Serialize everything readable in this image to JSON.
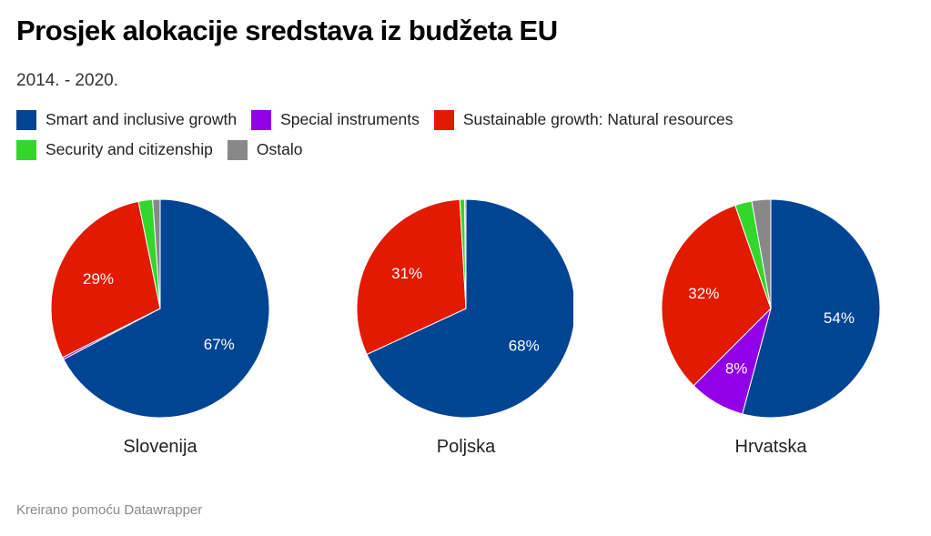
{
  "header": {
    "title": "Prosjek alokacije sredstava iz budžeta EU",
    "subtitle": "2014. - 2020."
  },
  "footer": {
    "credit": "Kreirano pomoću Datawrapper"
  },
  "chart_data": {
    "type": "pie",
    "title": "Prosjek alokacije sredstava iz budžeta EU",
    "subtitle": "2014. - 2020.",
    "legend_position": "top-left",
    "categories": [
      {
        "name": "Smart and inclusive growth",
        "color": "#004494"
      },
      {
        "name": "Special instruments",
        "color": "#8f00e6"
      },
      {
        "name": "Sustainable growth: Natural resources",
        "color": "#e31a00"
      },
      {
        "name": "Security and citizenship",
        "color": "#33d62b"
      },
      {
        "name": "Ostalo",
        "color": "#888888"
      }
    ],
    "legend_order": [
      0,
      1,
      2,
      3,
      4
    ],
    "pies": [
      {
        "name": "Slovenija",
        "values": [
          67.3,
          0.3,
          29.2,
          2.1,
          1.1
        ],
        "labels": [
          "67%",
          "",
          "29%",
          "",
          ""
        ]
      },
      {
        "name": "Poljska",
        "values": [
          68.1,
          0.0,
          31.0,
          0.7,
          0.2
        ],
        "labels": [
          "68%",
          "",
          "31%",
          "",
          ""
        ]
      },
      {
        "name": "Hrvatska",
        "values": [
          54.2,
          8.3,
          32.2,
          2.5,
          2.8
        ],
        "labels": [
          "54%",
          "8%",
          "32%",
          "",
          ""
        ]
      }
    ]
  }
}
